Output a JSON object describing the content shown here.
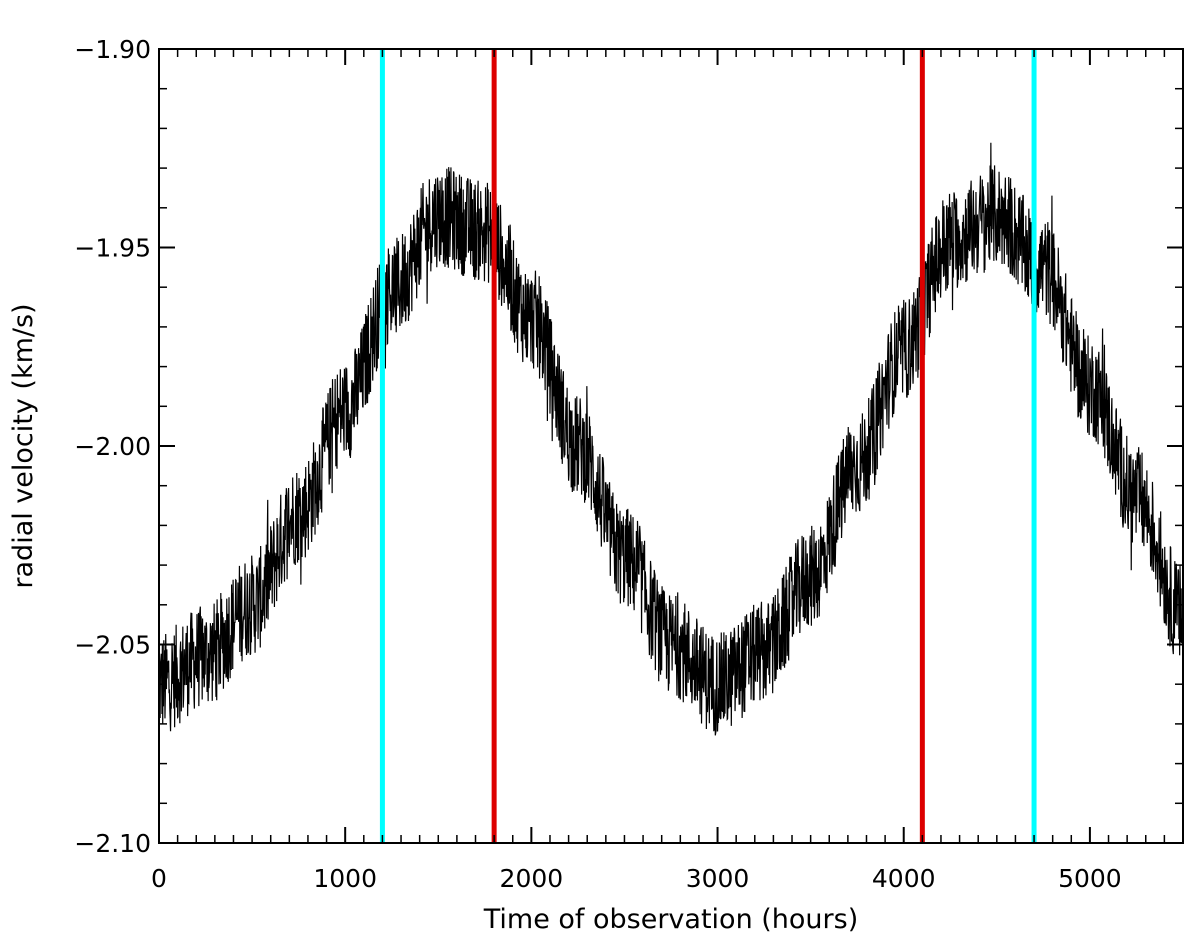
{
  "chart_data": {
    "type": "line",
    "title": "",
    "xlabel": "Time of observation (hours)",
    "ylabel": "radial velocity (km/s)",
    "xlim": [
      0,
      5500
    ],
    "ylim": [
      -2.1,
      -1.9
    ],
    "x_ticks": [
      0,
      1000,
      2000,
      3000,
      4000,
      5000
    ],
    "x_tick_labels": [
      "0",
      "1000",
      "2000",
      "3000",
      "4000",
      "5000"
    ],
    "y_ticks": [
      -2.1,
      -2.05,
      -2.0,
      -1.95,
      -1.9
    ],
    "y_tick_labels": [
      "−2.10",
      "−2.05",
      "−2.00",
      "−1.95",
      "−1.90"
    ],
    "grid": false,
    "series": [
      {
        "color": "#000000",
        "x": [
          0,
          250,
          500,
          750,
          1000,
          1250,
          1500,
          1750,
          2000,
          2250,
          2500,
          2750,
          3000,
          3250,
          3500,
          3750,
          4000,
          4250,
          4500,
          4750,
          5000,
          5250,
          5500
        ],
        "y": [
          -2.06,
          -2.053,
          -2.04,
          -2.017,
          -1.991,
          -1.961,
          -1.942,
          -1.946,
          -1.968,
          -2.0,
          -2.028,
          -2.05,
          -2.06,
          -2.052,
          -2.033,
          -2.005,
          -1.976,
          -1.948,
          -1.942,
          -1.955,
          -1.985,
          -2.013,
          -2.043
        ],
        "noise_band": 0.013
      }
    ],
    "vertical_lines": [
      {
        "x": 1200,
        "color": "#00ffff"
      },
      {
        "x": 1800,
        "color": "#dd0000"
      },
      {
        "x": 4100,
        "color": "#dd0000"
      },
      {
        "x": 4700,
        "color": "#00ffff"
      }
    ]
  }
}
